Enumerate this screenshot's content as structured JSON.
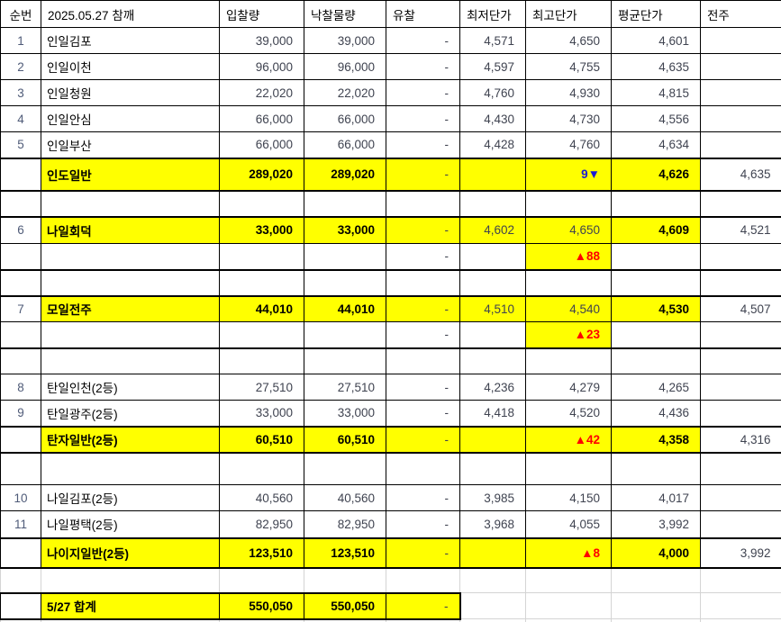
{
  "colors": {
    "highlight_yellow": "#ffff00",
    "increase_red": "#ff0000",
    "decrease_blue": "#1b1bd4",
    "grid_black": "#000000",
    "grid_gray": "#d4d4d4"
  },
  "columns": [
    {
      "key": "seq",
      "label": "순번",
      "hcls": "hdr center"
    },
    {
      "key": "name",
      "label": "2025.05.27 참깨",
      "hcls": "hdr"
    },
    {
      "key": "bid-qty",
      "label": "입찰량",
      "hcls": "hdr"
    },
    {
      "key": "won-qty",
      "label": "낙찰물량",
      "hcls": "hdr"
    },
    {
      "key": "failed",
      "label": "유찰",
      "hcls": "hdr"
    },
    {
      "key": "min-price",
      "label": "최저단가",
      "hcls": "hdr"
    },
    {
      "key": "max-price",
      "label": "최고단가",
      "hcls": "hdr"
    },
    {
      "key": "avg-price",
      "label": "평균단가",
      "hcls": "hdr"
    },
    {
      "key": "prev-week",
      "label": "전주",
      "hcls": "hdr"
    }
  ],
  "rows": [
    {
      "h": 29,
      "cells": [
        {
          "t": "1",
          "cls": "no"
        },
        {
          "t": "인일김포",
          "cls": "ko"
        },
        {
          "t": "39,000"
        },
        {
          "t": "39,000"
        },
        {
          "t": "-"
        },
        {
          "t": "4,571"
        },
        {
          "t": "4,650"
        },
        {
          "t": "4,601"
        },
        {
          "t": ""
        }
      ]
    },
    {
      "h": 29,
      "cells": [
        {
          "t": "2",
          "cls": "no"
        },
        {
          "t": "인일이천",
          "cls": "ko"
        },
        {
          "t": "96,000"
        },
        {
          "t": "96,000"
        },
        {
          "t": "-"
        },
        {
          "t": "4,597"
        },
        {
          "t": "4,755"
        },
        {
          "t": "4,635"
        },
        {
          "t": ""
        }
      ]
    },
    {
      "h": 29,
      "cells": [
        {
          "t": "3",
          "cls": "no"
        },
        {
          "t": "인일청원",
          "cls": "ko"
        },
        {
          "t": "22,020"
        },
        {
          "t": "22,020"
        },
        {
          "t": "-"
        },
        {
          "t": "4,760"
        },
        {
          "t": "4,930"
        },
        {
          "t": "4,815"
        },
        {
          "t": ""
        }
      ]
    },
    {
      "h": 29,
      "cells": [
        {
          "t": "4",
          "cls": "no"
        },
        {
          "t": "인일안심",
          "cls": "ko"
        },
        {
          "t": "66,000"
        },
        {
          "t": "66,000"
        },
        {
          "t": "-"
        },
        {
          "t": "4,430"
        },
        {
          "t": "4,730"
        },
        {
          "t": "4,556"
        },
        {
          "t": ""
        }
      ]
    },
    {
      "h": 29,
      "cells": [
        {
          "t": "5",
          "cls": "no"
        },
        {
          "t": "인일부산",
          "cls": "ko"
        },
        {
          "t": "66,000"
        },
        {
          "t": "66,000"
        },
        {
          "t": "-"
        },
        {
          "t": "4,428"
        },
        {
          "t": "4,760"
        },
        {
          "t": "4,634"
        },
        {
          "t": ""
        }
      ]
    },
    {
      "h": 36,
      "cls": "tt tb",
      "name": "summary-row-indo-ilban",
      "cells": [
        {
          "t": ""
        },
        {
          "t": "인도일반",
          "cls": "ko y b"
        },
        {
          "t": "289,020",
          "cls": "y b"
        },
        {
          "t": "289,020",
          "cls": "y b"
        },
        {
          "t": "-",
          "cls": "y"
        },
        {
          "t": "",
          "cls": "y"
        },
        {
          "t": "9▼",
          "cls": "y blue",
          "n": "delta-down-cell"
        },
        {
          "t": "4,626",
          "cls": "y b"
        },
        {
          "t": "4,635"
        }
      ]
    },
    {
      "h": 29,
      "name": "blank-row",
      "cells": [
        {},
        {},
        {},
        {},
        {},
        {},
        {},
        {},
        {}
      ]
    },
    {
      "h": 30,
      "cls": "tt",
      "name": "summary-row-nail-hoedeok",
      "cells": [
        {
          "t": "6",
          "cls": "no"
        },
        {
          "t": "나일회덕",
          "cls": "ko y b"
        },
        {
          "t": "33,000",
          "cls": "y b"
        },
        {
          "t": "33,000",
          "cls": "y b"
        },
        {
          "t": "-",
          "cls": "y"
        },
        {
          "t": "4,602",
          "cls": "y"
        },
        {
          "t": "4,650",
          "cls": "y"
        },
        {
          "t": "4,609",
          "cls": "y b"
        },
        {
          "t": "4,521"
        }
      ]
    },
    {
      "h": 29,
      "cls": "tb",
      "name": "delta-row",
      "cells": [
        {},
        {},
        {},
        {},
        {
          "t": "-"
        },
        {},
        {
          "t": "▲88",
          "cls": "y red",
          "n": "delta-up-cell"
        },
        {},
        {}
      ]
    },
    {
      "h": 29,
      "name": "blank-row",
      "cells": [
        {},
        {},
        {},
        {},
        {},
        {},
        {},
        {},
        {}
      ]
    },
    {
      "h": 29,
      "cls": "tt",
      "name": "summary-row-moil-jeonju",
      "cells": [
        {
          "t": "7",
          "cls": "no"
        },
        {
          "t": "모일전주",
          "cls": "ko y b"
        },
        {
          "t": "44,010",
          "cls": "y b"
        },
        {
          "t": "44,010",
          "cls": "y b"
        },
        {
          "t": "-",
          "cls": "y"
        },
        {
          "t": "4,510",
          "cls": "y"
        },
        {
          "t": "4,540",
          "cls": "y"
        },
        {
          "t": "4,530",
          "cls": "y b"
        },
        {
          "t": "4,507"
        }
      ]
    },
    {
      "h": 29,
      "cls": "tb",
      "name": "delta-row",
      "cells": [
        {},
        {},
        {},
        {},
        {
          "t": "-"
        },
        {},
        {
          "t": "▲23",
          "cls": "y red",
          "n": "delta-up-cell"
        },
        {},
        {}
      ]
    },
    {
      "h": 29,
      "name": "blank-row",
      "cells": [
        {},
        {},
        {},
        {},
        {},
        {},
        {},
        {},
        {}
      ]
    },
    {
      "h": 29,
      "cells": [
        {
          "t": "8",
          "cls": "no"
        },
        {
          "t": "탄일인천(2등)",
          "cls": "ko"
        },
        {
          "t": "27,510"
        },
        {
          "t": "27,510"
        },
        {
          "t": "-"
        },
        {
          "t": "4,236"
        },
        {
          "t": "4,279"
        },
        {
          "t": "4,265"
        },
        {
          "t": ""
        }
      ]
    },
    {
      "h": 29,
      "cells": [
        {
          "t": "9",
          "cls": "no"
        },
        {
          "t": "탄일광주(2등)",
          "cls": "ko"
        },
        {
          "t": "33,000"
        },
        {
          "t": "33,000"
        },
        {
          "t": "-"
        },
        {
          "t": "4,418"
        },
        {
          "t": "4,520"
        },
        {
          "t": "4,436"
        },
        {
          "t": ""
        }
      ]
    },
    {
      "h": 29,
      "cls": "tt tb",
      "name": "summary-row-tanja-ilban",
      "cells": [
        {
          "t": ""
        },
        {
          "t": "탄자일반(2등)",
          "cls": "ko y b"
        },
        {
          "t": "60,510",
          "cls": "y b"
        },
        {
          "t": "60,510",
          "cls": "y b"
        },
        {
          "t": "-",
          "cls": "y"
        },
        {
          "t": "",
          "cls": "y"
        },
        {
          "t": "▲42",
          "cls": "y red",
          "n": "delta-up-cell"
        },
        {
          "t": "4,358",
          "cls": "y b"
        },
        {
          "t": "4,316"
        }
      ]
    },
    {
      "h": 36,
      "name": "blank-row",
      "cells": [
        {},
        {},
        {},
        {},
        {},
        {},
        {},
        {},
        {}
      ]
    },
    {
      "h": 29,
      "cells": [
        {
          "t": "10",
          "cls": "no"
        },
        {
          "t": "나일김포(2등)",
          "cls": "ko"
        },
        {
          "t": "40,560"
        },
        {
          "t": "40,560"
        },
        {
          "t": "-"
        },
        {
          "t": "3,985"
        },
        {
          "t": "4,150"
        },
        {
          "t": "4,017"
        },
        {
          "t": ""
        }
      ]
    },
    {
      "h": 30,
      "cells": [
        {
          "t": "11",
          "cls": "no"
        },
        {
          "t": "나일평택(2등)",
          "cls": "ko"
        },
        {
          "t": "82,950"
        },
        {
          "t": "82,950"
        },
        {
          "t": "-"
        },
        {
          "t": "3,968"
        },
        {
          "t": "4,055"
        },
        {
          "t": "3,992"
        },
        {
          "t": ""
        }
      ]
    },
    {
      "h": 33,
      "cls": "tt tb",
      "name": "summary-row-naiji-ilban",
      "cells": [
        {
          "t": ""
        },
        {
          "t": "나이지일반(2등)",
          "cls": "ko y b"
        },
        {
          "t": "123,510",
          "cls": "y b"
        },
        {
          "t": "123,510",
          "cls": "y b"
        },
        {
          "t": "-",
          "cls": "y"
        },
        {
          "t": "",
          "cls": "y"
        },
        {
          "t": "▲8",
          "cls": "y red",
          "n": "delta-up-cell"
        },
        {
          "t": "4,000",
          "cls": "y b"
        },
        {
          "t": "3,992"
        }
      ]
    },
    {
      "h": 28,
      "cls": "grayrow",
      "name": "blank-row",
      "cells": [
        {},
        {},
        {},
        {},
        {},
        {},
        {},
        {},
        {}
      ]
    },
    {
      "h": 29,
      "cls": "grand",
      "name": "total-row",
      "cells": [
        {
          "t": "",
          "cls": "gbox"
        },
        {
          "t": "5/27 합계",
          "cls": "ko y b gbox"
        },
        {
          "t": "550,050",
          "cls": "y b gbox"
        },
        {
          "t": "550,050",
          "cls": "y b gbox"
        },
        {
          "t": "-",
          "cls": "y gbox br2"
        },
        {
          "t": "",
          "cls": "g"
        },
        {
          "t": "",
          "cls": "g"
        },
        {
          "t": "",
          "cls": "g"
        },
        {
          "t": "",
          "cls": "g"
        }
      ]
    },
    {
      "h": 4,
      "cls": "striprow",
      "name": "blank-row",
      "cells": [
        {},
        {},
        {},
        {},
        {},
        {},
        {},
        {},
        {}
      ]
    }
  ]
}
